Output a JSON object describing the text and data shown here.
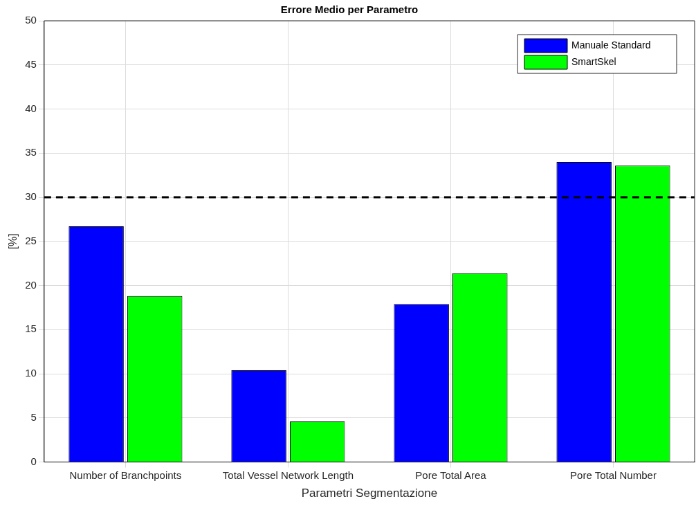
{
  "chart_data": {
    "type": "bar",
    "title": "Errore Medio per Parametro",
    "xlabel": "Parametri Segmentazione",
    "ylabel": "[%]",
    "categories": [
      "Number of Branchpoints",
      "Total Vessel Network Length",
      "Pore Total Area",
      "Pore Total Number"
    ],
    "series": [
      {
        "name": "Manuale Standard",
        "color": "#0000ff",
        "values": [
          26.7,
          10.4,
          17.9,
          34.0
        ]
      },
      {
        "name": "SmartSkel",
        "color": "#00ff00",
        "values": [
          18.8,
          4.6,
          21.4,
          33.6
        ]
      }
    ],
    "ylim": [
      0,
      50
    ],
    "yticks": [
      0,
      5,
      10,
      15,
      20,
      25,
      30,
      35,
      40,
      45,
      50
    ],
    "grid": true,
    "legend": "top right",
    "ref_lines": [
      {
        "axis": "y",
        "value": 30,
        "color": "#000000",
        "line_style": "dashed"
      }
    ]
  }
}
